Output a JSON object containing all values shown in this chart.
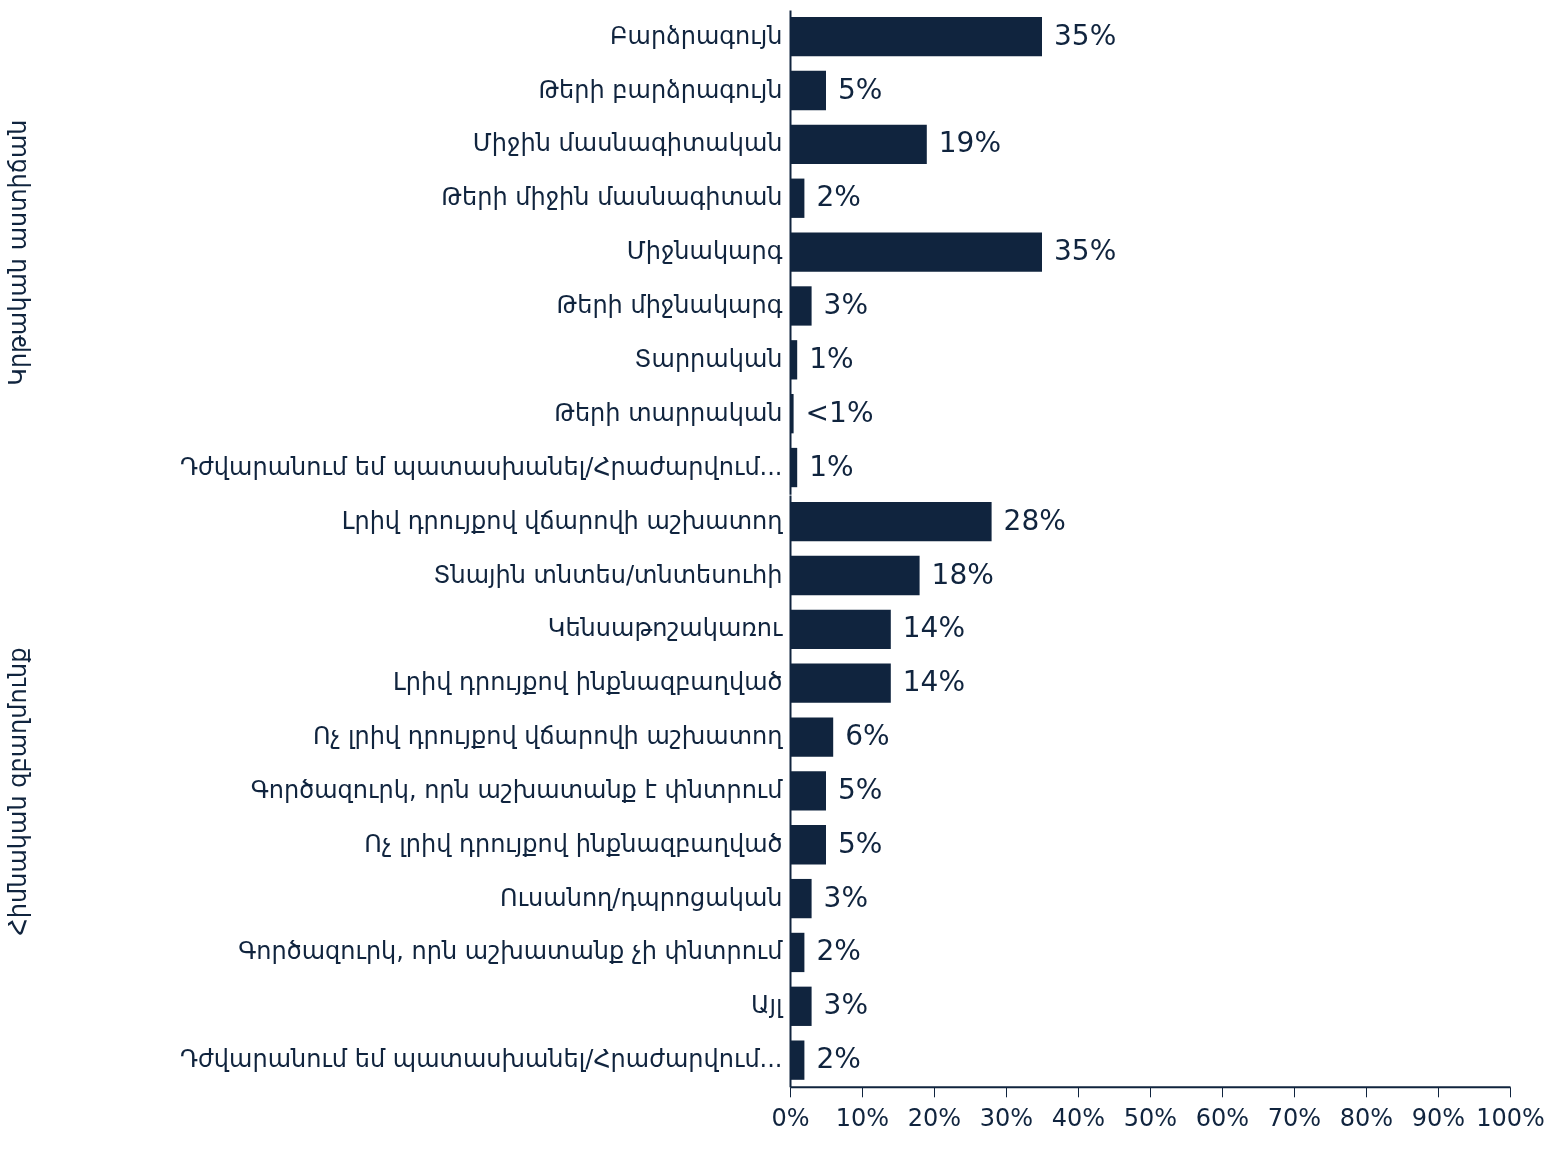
{
  "chart_data": [
    {
      "type": "bar",
      "orientation": "horizontal",
      "ylabel": "Կրթական աստիճան",
      "tick_labels": "y",
      "color": "#10243e",
      "categories": [
        "Բարձրագույն",
        "Թերի բարձրագույն",
        "Միջին մասնագիտական",
        "Թերի միջին մասնագիտան",
        "Միջնակարգ",
        "Թերի միջնակարգ",
        "Տարրական",
        "Թերի տարրական",
        "Դժվարանում եմ պատասխանել/Հրաժարվում..."
      ],
      "values": [
        35,
        5,
        19,
        2,
        35,
        3,
        1,
        0.5,
        1
      ],
      "value_labels": [
        "35%",
        "5%",
        "19%",
        "2%",
        "35%",
        "3%",
        "1%",
        "<1%",
        "1%"
      ],
      "xlim": [
        0,
        100
      ]
    },
    {
      "type": "bar",
      "orientation": "horizontal",
      "ylabel": "Հիմնական զբաղմունք",
      "color": "#10243e",
      "categories": [
        "Լրիվ դրույքով վճարովի աշխատող",
        "Տնային տնտես/տնտեսուհի",
        "Կենսաթոշակառու",
        "Լրիվ դրույքով ինքնազբաղված",
        "Ոչ լրիվ դրույքով վճարովի աշխատող",
        "Գործազուրկ, որն աշխատանք է փնտրում",
        "Ոչ լրիվ դրույքով ինքնազբաղված",
        "Ուսանող/դպրոցական",
        "Գործազուրկ, որն աշխատանք չի փնտրում",
        "Այլ",
        "Դժվարանում եմ պատասխանել/Հրաժարվում..."
      ],
      "values": [
        28,
        18,
        14,
        14,
        6,
        5,
        5,
        3,
        2,
        3,
        2
      ],
      "value_labels": [
        "28%",
        "18%",
        "14%",
        "14%",
        "6%",
        "5%",
        "5%",
        "3%",
        "2%",
        "3%",
        "2%"
      ],
      "xlim": [
        0,
        100
      ],
      "xticks": [
        {
          "value": 0,
          "label": "0%"
        },
        {
          "value": 10,
          "label": "10%"
        },
        {
          "value": 20,
          "label": "20%"
        },
        {
          "value": 30,
          "label": "30%"
        },
        {
          "value": 40,
          "label": "40%"
        },
        {
          "value": 50,
          "label": "50%"
        },
        {
          "value": 60,
          "label": "60%"
        },
        {
          "value": 70,
          "label": "70%"
        },
        {
          "value": 80,
          "label": "80%"
        },
        {
          "value": 90,
          "label": "90%"
        },
        {
          "value": 100,
          "label": "100%"
        }
      ]
    }
  ]
}
